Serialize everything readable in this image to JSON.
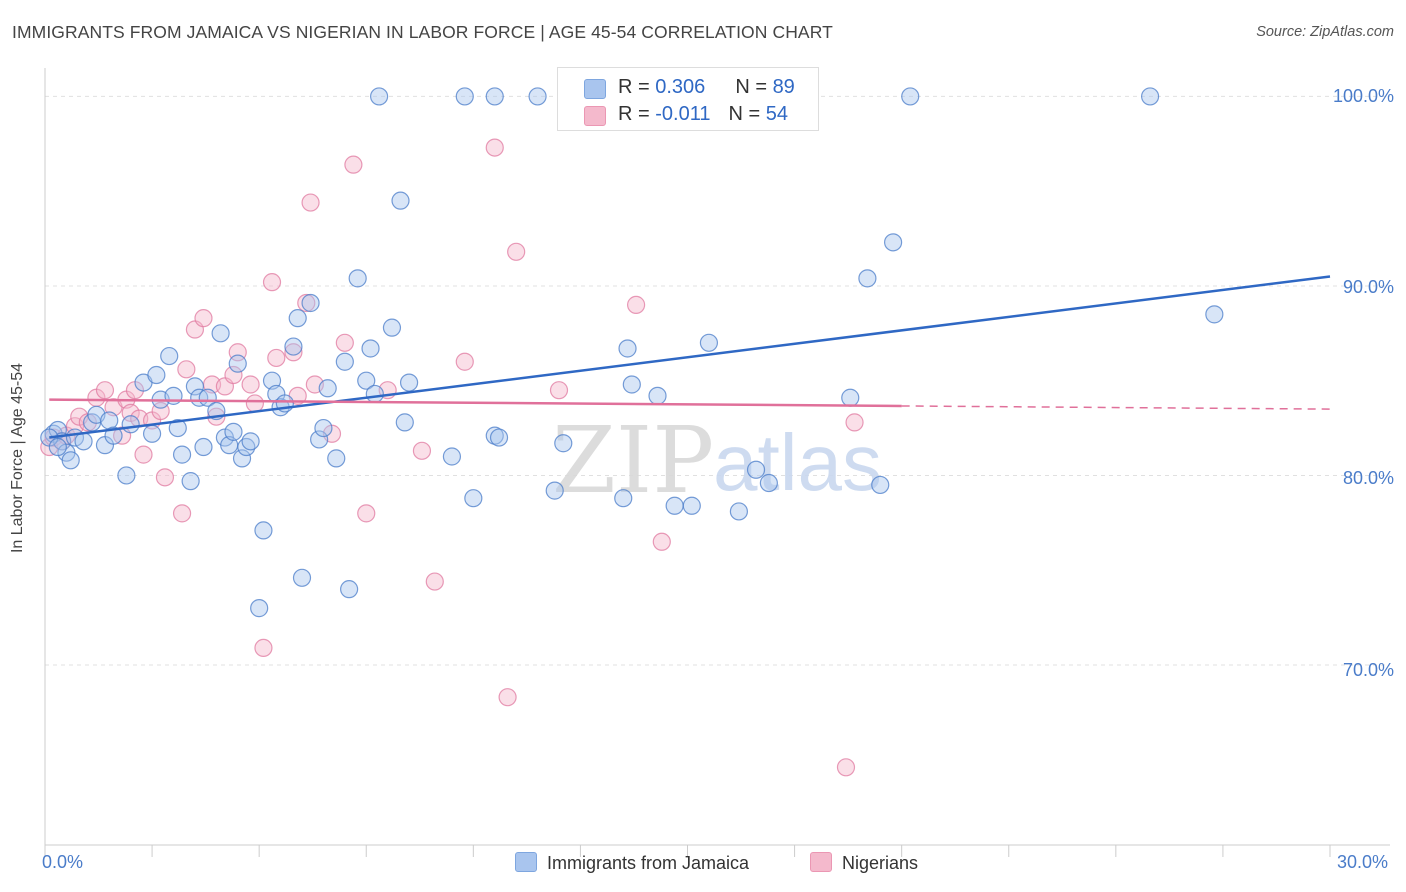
{
  "title": "IMMIGRANTS FROM JAMAICA VS NIGERIAN IN LABOR FORCE | AGE 45-54 CORRELATION CHART",
  "source": "Source: ZipAtlas.com",
  "watermark": {
    "zip": "ZIP",
    "atlas": "atlas"
  },
  "colors": {
    "blue": "#4a7cc9",
    "blue_fill": "#a9c5ee",
    "blue_line": "#2f68c4",
    "pink": "#e07aa0",
    "pink_fill": "#f4b9cc",
    "pink_line": "#e0709a"
  },
  "legend": {
    "rows": [
      {
        "r_label": "R = ",
        "r_value": "0.306",
        "n_label": "N = ",
        "n_value": "89"
      },
      {
        "r_label": "R = ",
        "r_value": "-0.011",
        "n_label": "N = ",
        "n_value": "54"
      }
    ]
  },
  "bottom_legend": [
    "Immigrants from Jamaica",
    "Nigerians"
  ],
  "chart_data": {
    "type": "scatter",
    "title": "IMMIGRANTS FROM JAMAICA VS NIGERIAN IN LABOR FORCE | AGE 45-54 CORRELATION CHART",
    "xlabel": "",
    "ylabel": "In Labor Force | Age 45-54",
    "xlim": [
      0,
      30
    ],
    "ylim": [
      60.5,
      101.5
    ],
    "x_tick_labels": [
      "0.0%",
      "30.0%"
    ],
    "y_ticks": [
      70,
      80,
      90,
      100
    ],
    "y_tick_labels": [
      "70.0%",
      "80.0%",
      "90.0%",
      "100.0%"
    ],
    "series": [
      {
        "name": "Immigrants from Jamaica",
        "color": "#a9c5ee",
        "trend": {
          "x": [
            0.1,
            30.0
          ],
          "y": [
            82.0,
            90.5
          ],
          "style": "solid"
        },
        "points": [
          [
            0.2,
            82.2
          ],
          [
            0.3,
            82.4
          ],
          [
            0.4,
            81.8
          ],
          [
            0.5,
            81.2
          ],
          [
            0.6,
            80.8
          ],
          [
            0.7,
            82.0
          ],
          [
            0.9,
            81.8
          ],
          [
            1.1,
            82.8
          ],
          [
            1.2,
            83.2
          ],
          [
            1.4,
            81.6
          ],
          [
            1.5,
            82.9
          ],
          [
            1.6,
            82.1
          ],
          [
            1.9,
            80.0
          ],
          [
            2.0,
            82.7
          ],
          [
            2.3,
            84.9
          ],
          [
            2.5,
            82.2
          ],
          [
            2.6,
            85.3
          ],
          [
            2.7,
            84.0
          ],
          [
            2.9,
            86.3
          ],
          [
            3.0,
            84.2
          ],
          [
            3.1,
            82.5
          ],
          [
            3.2,
            81.1
          ],
          [
            3.4,
            79.7
          ],
          [
            3.5,
            84.7
          ],
          [
            3.6,
            84.1
          ],
          [
            3.7,
            81.5
          ],
          [
            3.8,
            84.1
          ],
          [
            4.0,
            83.4
          ],
          [
            4.1,
            87.5
          ],
          [
            4.2,
            82.0
          ],
          [
            4.3,
            81.6
          ],
          [
            4.4,
            82.3
          ],
          [
            4.5,
            85.9
          ],
          [
            4.6,
            80.9
          ],
          [
            4.7,
            81.5
          ],
          [
            4.8,
            81.8
          ],
          [
            5.0,
            73.0
          ],
          [
            5.1,
            77.1
          ],
          [
            5.3,
            85.0
          ],
          [
            5.4,
            84.3
          ],
          [
            5.5,
            83.6
          ],
          [
            5.6,
            83.8
          ],
          [
            5.8,
            86.8
          ],
          [
            5.9,
            88.3
          ],
          [
            6.0,
            74.6
          ],
          [
            6.2,
            89.1
          ],
          [
            6.4,
            81.9
          ],
          [
            6.5,
            82.5
          ],
          [
            6.6,
            84.6
          ],
          [
            6.8,
            80.9
          ],
          [
            7.0,
            86.0
          ],
          [
            7.1,
            74.0
          ],
          [
            7.3,
            90.4
          ],
          [
            7.5,
            85.0
          ],
          [
            7.6,
            86.7
          ],
          [
            7.7,
            84.3
          ],
          [
            8.1,
            87.8
          ],
          [
            8.4,
            82.8
          ],
          [
            8.5,
            84.9
          ],
          [
            8.3,
            94.5
          ],
          [
            9.5,
            81.0
          ],
          [
            10.0,
            78.8
          ],
          [
            10.5,
            82.1
          ],
          [
            10.6,
            82.0
          ],
          [
            11.9,
            79.2
          ],
          [
            12.1,
            81.7
          ],
          [
            13.5,
            78.8
          ],
          [
            13.6,
            86.7
          ],
          [
            13.7,
            84.8
          ],
          [
            14.3,
            84.2
          ],
          [
            14.7,
            78.4
          ],
          [
            15.1,
            78.4
          ],
          [
            15.5,
            87.0
          ],
          [
            16.2,
            78.1
          ],
          [
            16.6,
            80.3
          ],
          [
            16.9,
            79.6
          ],
          [
            18.8,
            84.1
          ],
          [
            19.2,
            90.4
          ],
          [
            19.5,
            79.5
          ],
          [
            19.8,
            92.3
          ],
          [
            27.3,
            88.5
          ],
          [
            7.8,
            100.0
          ],
          [
            9.8,
            100.0
          ],
          [
            10.5,
            100.0
          ],
          [
            11.5,
            100.0
          ],
          [
            20.2,
            100.0
          ],
          [
            25.8,
            100.0
          ],
          [
            0.1,
            82.0
          ],
          [
            0.3,
            81.5
          ]
        ]
      },
      {
        "name": "Nigerians",
        "color": "#f4b9cc",
        "trend": {
          "x": [
            0.1,
            30.0
          ],
          "y": [
            84.0,
            83.5
          ],
          "solid_until": 20.0,
          "style": "solid-then-dashed"
        },
        "points": [
          [
            0.1,
            81.5
          ],
          [
            0.2,
            82.0
          ],
          [
            0.4,
            81.8
          ],
          [
            0.5,
            82.1
          ],
          [
            0.7,
            82.6
          ],
          [
            0.8,
            83.1
          ],
          [
            1.0,
            82.8
          ],
          [
            1.2,
            84.1
          ],
          [
            1.4,
            84.5
          ],
          [
            1.6,
            83.6
          ],
          [
            1.8,
            82.1
          ],
          [
            1.9,
            84.0
          ],
          [
            2.0,
            83.3
          ],
          [
            2.1,
            84.5
          ],
          [
            2.2,
            83.0
          ],
          [
            2.3,
            81.1
          ],
          [
            2.5,
            82.9
          ],
          [
            2.7,
            83.4
          ],
          [
            2.8,
            79.9
          ],
          [
            3.2,
            78.0
          ],
          [
            3.3,
            85.6
          ],
          [
            3.5,
            87.7
          ],
          [
            3.7,
            88.3
          ],
          [
            3.9,
            84.8
          ],
          [
            4.0,
            83.1
          ],
          [
            4.2,
            84.7
          ],
          [
            4.4,
            85.3
          ],
          [
            4.5,
            86.5
          ],
          [
            4.8,
            84.8
          ],
          [
            4.9,
            83.8
          ],
          [
            5.1,
            70.9
          ],
          [
            5.3,
            90.2
          ],
          [
            5.4,
            86.2
          ],
          [
            5.8,
            86.5
          ],
          [
            5.9,
            84.2
          ],
          [
            6.1,
            89.1
          ],
          [
            6.2,
            94.4
          ],
          [
            6.3,
            84.8
          ],
          [
            6.7,
            82.2
          ],
          [
            7.0,
            87.0
          ],
          [
            7.2,
            96.4
          ],
          [
            7.5,
            78.0
          ],
          [
            8.0,
            84.5
          ],
          [
            8.8,
            81.3
          ],
          [
            9.1,
            74.4
          ],
          [
            9.8,
            86.0
          ],
          [
            10.5,
            97.3
          ],
          [
            10.8,
            68.3
          ],
          [
            11.0,
            91.8
          ],
          [
            12.0,
            84.5
          ],
          [
            13.8,
            89.0
          ],
          [
            14.4,
            76.5
          ],
          [
            18.7,
            64.6
          ],
          [
            18.9,
            82.8
          ]
        ]
      }
    ]
  }
}
